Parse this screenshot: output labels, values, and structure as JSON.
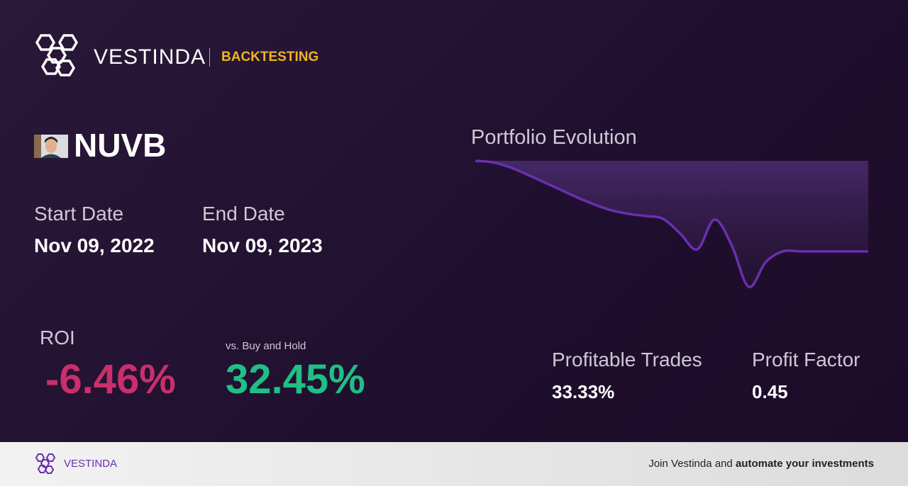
{
  "header": {
    "brand": "VESTINDA",
    "section": "BACKTESTING"
  },
  "ticker": "NUVB",
  "dates": {
    "start_label": "Start Date",
    "start": "Nov 09, 2022",
    "end_label": "End Date",
    "end": "Nov 09, 2023"
  },
  "roi": {
    "label": "ROI",
    "value": "-6.46%",
    "compare_label": "vs. Buy and Hold",
    "compare_value": "32.45%"
  },
  "stats": {
    "trades_label": "Profitable Trades",
    "trades": "33.33%",
    "factor_label": "Profit Factor",
    "factor": "0.45"
  },
  "footer": {
    "brand": "VESTINDA",
    "text": "Join Vestinda and",
    "bold": "automate your investments"
  },
  "chart_data": {
    "type": "line",
    "title": "Portfolio Evolution",
    "color": "#6a2fb0",
    "values": [
      100,
      99.9,
      99.55,
      99.04,
      98.49,
      97.93,
      97.37,
      96.87,
      96.46,
      96.21,
      96.06,
      95.86,
      94.8,
      93.69,
      95.81,
      93.99,
      91.01,
      92.78,
      93.54,
      93.54,
      93.54,
      93.54,
      93.54,
      93.54
    ],
    "ylim": [
      90.6,
      100
    ]
  }
}
